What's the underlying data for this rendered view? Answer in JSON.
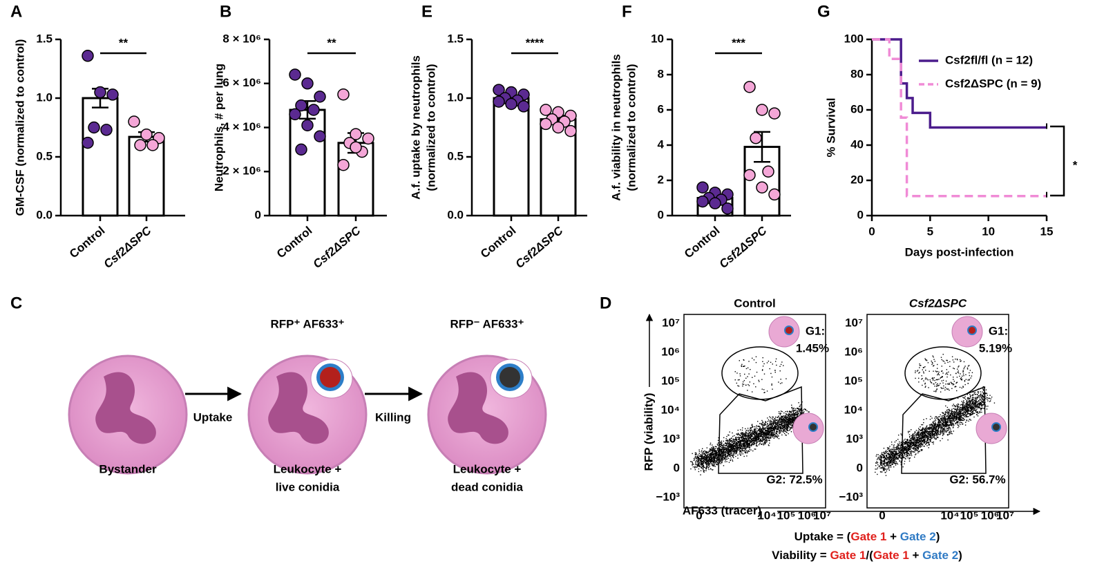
{
  "panel_labels": [
    "A",
    "B",
    "E",
    "F",
    "G",
    "C",
    "D"
  ],
  "chart_data": [
    {
      "type": "bar",
      "ylabel": [
        "GM-CSF (normalized to control)"
      ],
      "categories": [
        "Control",
        "Csf2ΔSPC"
      ],
      "values": [
        1.0,
        0.67
      ],
      "errors": [
        0.08,
        0.04
      ],
      "points": [
        [
          1.36,
          1.05,
          1.03,
          0.75,
          0.73,
          0.62
        ],
        [
          0.8,
          0.69,
          0.66,
          0.6,
          0.6
        ]
      ],
      "point_colors": [
        "#5b2a91",
        "#f4a6d7"
      ],
      "significance": "**",
      "ylim": [
        0,
        1.5
      ],
      "yticks": [
        {
          "value": 0,
          "label": "0.0"
        },
        0.5,
        {
          "value": 1,
          "label": "1.0"
        },
        1.5
      ]
    },
    {
      "type": "bar",
      "ylabel": [
        "Neutrophils, # per lung"
      ],
      "categories": [
        "Control",
        "Csf2ΔSPC"
      ],
      "values": [
        4800000,
        3300000
      ],
      "errors": [
        400000,
        450000
      ],
      "points": [
        [
          6400000,
          6000000,
          5400000,
          5000000,
          4800000,
          4600000,
          4100000,
          3600000,
          3000000
        ],
        [
          5500000,
          3700000,
          3500000,
          3300000,
          2900000,
          2300000,
          3100000
        ]
      ],
      "point_colors": [
        "#5b2a91",
        "#f4a6d7"
      ],
      "significance": "**",
      "ylim": [
        0,
        8000000
      ],
      "yticks": [
        0,
        {
          "value": 2000000,
          "label": "2 × 10⁶"
        },
        {
          "value": 4000000,
          "label": "4 × 10⁶"
        },
        {
          "value": 6000000,
          "label": "6 × 10⁶"
        },
        {
          "value": 8000000,
          "label": "8 × 10⁶"
        }
      ]
    },
    {
      "type": "bar",
      "ylabel": [
        "A.f. uptake by neutrophils",
        "(normalized to control)"
      ],
      "categories": [
        "Control",
        "Csf2ΔSPC"
      ],
      "values": [
        1.0,
        0.82
      ],
      "errors": [
        0.02,
        0.03
      ],
      "points": [
        [
          1.07,
          1.05,
          1.03,
          1.0,
          0.98,
          0.97,
          0.95,
          0.93
        ],
        [
          0.9,
          0.88,
          0.85,
          0.82,
          0.8,
          0.78,
          0.75,
          0.72
        ]
      ],
      "point_colors": [
        "#5b2a91",
        "#f4a6d7"
      ],
      "significance": "****",
      "ylim": [
        0,
        1.5
      ],
      "yticks": [
        {
          "value": 0,
          "label": "0.0"
        },
        0.5,
        {
          "value": 1,
          "label": "1.0"
        },
        1.5
      ]
    },
    {
      "type": "bar",
      "ylabel": [
        "A.f. viability in neutrophils",
        "(normalized to control)"
      ],
      "categories": [
        "Control",
        "Csf2ΔSPC"
      ],
      "values": [
        1.0,
        3.9
      ],
      "errors": [
        0.15,
        0.85
      ],
      "points": [
        [
          1.6,
          1.3,
          1.2,
          1.0,
          0.9,
          0.8,
          0.7,
          0.4
        ],
        [
          7.3,
          6.0,
          5.8,
          4.4,
          2.5,
          2.3,
          1.6,
          1.2
        ]
      ],
      "point_colors": [
        "#5b2a91",
        "#f4a6d7"
      ],
      "significance": "***",
      "ylim": [
        0,
        10
      ],
      "yticks": [
        0,
        2,
        4,
        6,
        8,
        10
      ]
    },
    {
      "type": "survival",
      "xlabel": "Days post-infection",
      "ylabel": [
        "% Survival"
      ],
      "series": [
        {
          "name": "Csf2fl/fl (n = 12)",
          "color": "#4b1c8c",
          "dashed": false,
          "x": [
            0,
            2.5,
            3,
            3.5,
            5,
            15
          ],
          "values": [
            100,
            75,
            66.7,
            58.3,
            50,
            50
          ]
        },
        {
          "name": "Csf2ΔSPC (n = 9)",
          "color": "#f08bd6",
          "dashed": true,
          "x": [
            0,
            1.5,
            2.5,
            3,
            15
          ],
          "values": [
            100,
            88.9,
            55.6,
            11.1,
            11.1
          ]
        }
      ],
      "significance": "*",
      "xlim": [
        0,
        15
      ],
      "xticks": [
        0,
        5,
        10,
        15
      ],
      "ylim": [
        0,
        100
      ],
      "yticks": [
        0,
        20,
        40,
        60,
        80,
        100
      ]
    }
  ],
  "diagram": {
    "headers": [
      "RFP⁺ AF633⁺",
      "RFP⁻ AF633⁺"
    ],
    "arrows": [
      "Uptake",
      "Killing"
    ],
    "cells": [
      [
        "Bystander"
      ],
      [
        "Leukocyte +",
        "live conidia"
      ],
      [
        "Leukocyte +",
        "dead conidia"
      ]
    ]
  },
  "flow": {
    "titles": [
      "Control",
      "Csf2ΔSPC"
    ],
    "gates": [
      [
        "G1:",
        "1.45%",
        "G2: 72.5%"
      ],
      [
        "G1:",
        "5.19%",
        "G2: 56.7%"
      ]
    ],
    "ylabel": "RFP (viability)",
    "xlabel": "AF633 (tracer)",
    "yticks": [
      "10⁷",
      "10⁶",
      "10⁵",
      "10⁴",
      "10³",
      "0",
      "−10³"
    ],
    "xticks": [
      "0",
      "10⁴",
      "10⁵",
      "10⁶",
      "10⁷"
    ],
    "formula": [
      [
        {
          "t": "Uptake = (",
          "c": "#000"
        },
        {
          "t": "Gate 1",
          "c": "#e0201c"
        },
        {
          "t": " + ",
          "c": "#000"
        },
        {
          "t": "Gate 2",
          "c": "#2f7ac4"
        },
        {
          "t": ")",
          "c": "#000"
        }
      ],
      [
        {
          "t": "Viability = ",
          "c": "#000"
        },
        {
          "t": "Gate 1",
          "c": "#e0201c"
        },
        {
          "t": "/(",
          "c": "#000"
        },
        {
          "t": "Gate 1",
          "c": "#e0201c"
        },
        {
          "t": " + ",
          "c": "#000"
        },
        {
          "t": "Gate 2",
          "c": "#2f7ac4"
        },
        {
          "t": ")",
          "c": "#000"
        }
      ]
    ]
  }
}
